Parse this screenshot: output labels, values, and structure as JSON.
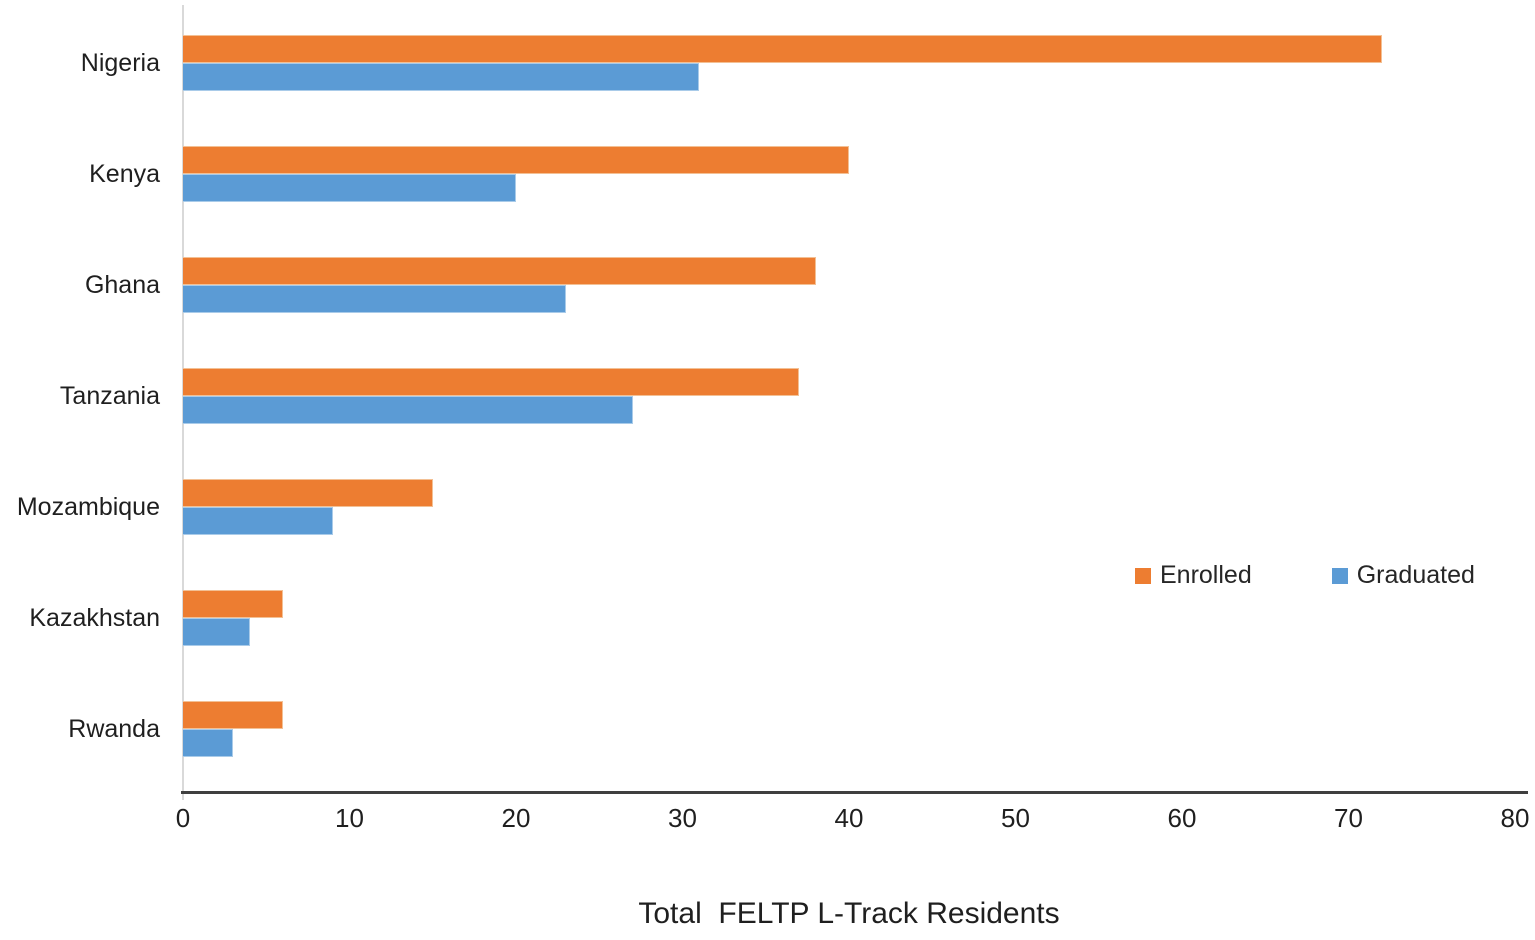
{
  "chart_data": {
    "type": "bar",
    "orientation": "horizontal",
    "title": "",
    "xlabel": "Total  FELTP L-Track Residents",
    "ylabel": "",
    "categories": [
      "Nigeria",
      "Kenya",
      "Ghana",
      "Tanzania",
      "Mozambique",
      "Kazakhstan",
      "Rwanda"
    ],
    "series": [
      {
        "name": "Enrolled",
        "color": "#ED7D31",
        "values": [
          72,
          40,
          38,
          37,
          15,
          6,
          6
        ]
      },
      {
        "name": "Graduated",
        "color": "#5B9BD5",
        "values": [
          31,
          20,
          23,
          27,
          9,
          4,
          3
        ]
      }
    ],
    "xlim": [
      0,
      80
    ],
    "x_ticks": [
      "0",
      "10",
      "20",
      "30",
      "40",
      "50",
      "60",
      "70",
      "80"
    ],
    "grid": false,
    "legend_position": "middle-right"
  },
  "colors": {
    "enrolled": "#ED7D31",
    "graduated": "#5B9BD5",
    "x_axis_line": "#3F3F3F",
    "y_axis_line": "#D9D9D9",
    "text": "#1F1F1F",
    "background": "#FFFFFF"
  }
}
